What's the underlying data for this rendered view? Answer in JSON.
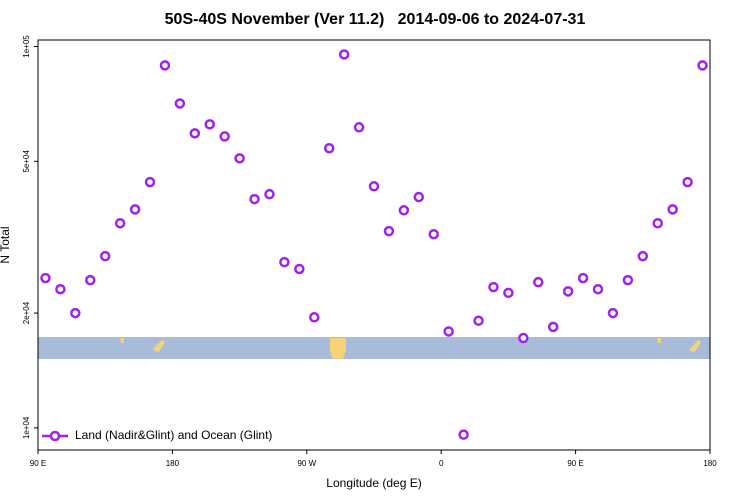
{
  "chart_data": {
    "type": "scatter",
    "title": "50S-40S November (Ver 11.2)   2014-09-06 to 2024-07-31",
    "x_label": "Longitude (deg E)",
    "y_label": "N Total",
    "y_log": true,
    "grid": false,
    "legend_position": "bottom-left",
    "xlim": [
      90,
      540
    ],
    "xticks": [
      {
        "value": 90,
        "label": "90 E"
      },
      {
        "value": 180,
        "label": "180"
      },
      {
        "value": 270,
        "label": "90 W"
      },
      {
        "value": 360,
        "label": "0"
      },
      {
        "value": 450,
        "label": "90 E"
      },
      {
        "value": 540,
        "label": "180"
      }
    ],
    "ylim": [
      8750,
      104000
    ],
    "yticks": [
      {
        "value": 10000,
        "label": "1e+04"
      },
      {
        "value": 20000,
        "label": "2e+04"
      },
      {
        "value": 50000,
        "label": "5e+04"
      },
      {
        "value": 100000,
        "label": "1e+05"
      }
    ],
    "series": [
      {
        "name": "Land (Nadir&Glint) and Ocean (Glint)",
        "color": "#a020f0",
        "x": [
          95,
          105,
          115,
          125,
          135,
          145,
          155,
          165,
          175,
          185,
          195,
          205,
          215,
          225,
          235,
          245,
          255,
          265,
          275,
          285,
          295,
          305,
          315,
          325,
          335,
          345,
          355,
          365,
          375,
          385,
          395,
          405,
          415,
          425,
          435,
          445,
          455,
          465,
          475,
          485,
          495,
          505,
          515,
          525,
          535
        ],
        "values": [
          24700,
          23100,
          20000,
          24400,
          28200,
          34400,
          37400,
          44100,
          89200,
          70900,
          59200,
          62500,
          58100,
          50900,
          39800,
          41000,
          27200,
          26100,
          19500,
          54100,
          95300,
          61400,
          43000,
          32800,
          37200,
          40300,
          32200,
          17900,
          9600,
          19100,
          23400,
          22600,
          17200,
          24100,
          18400,
          22800,
          24700,
          23100,
          20000,
          24400,
          28200,
          34400,
          37400,
          44100,
          89200
        ]
      }
    ]
  }
}
